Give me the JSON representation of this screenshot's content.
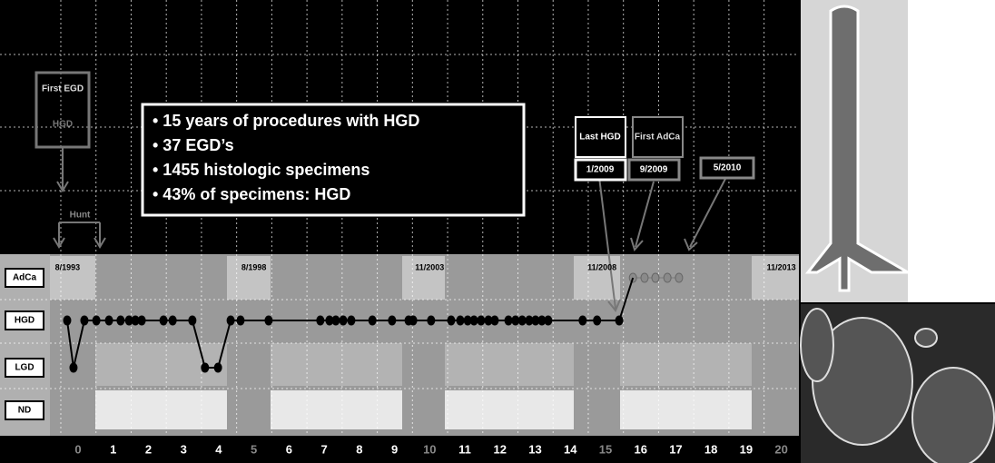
{
  "chart_data": {
    "type": "line",
    "y_categories": [
      "AdCa",
      "HGD",
      "LGD",
      "ND"
    ],
    "xlim": [
      -0.8,
      20.5
    ],
    "xticks": [
      0,
      1,
      2,
      3,
      4,
      5,
      6,
      7,
      8,
      9,
      10,
      11,
      12,
      13,
      14,
      15,
      16,
      17,
      18,
      19,
      20
    ],
    "x2ticks": [
      {
        "value": -0.3,
        "label": "8/1993"
      },
      {
        "value": 5,
        "label": "8/1998"
      },
      {
        "value": 10,
        "label": "11/2003"
      },
      {
        "value": 14.9,
        "label": "11/2008"
      },
      {
        "value": 20,
        "label": "11/2013"
      }
    ],
    "grid": true,
    "series": [
      {
        "color": "#000000",
        "x": [
          -0.31,
          -0.13,
          0.18,
          0.52,
          0.88,
          1.21,
          1.45,
          1.63,
          1.81,
          2.43,
          2.69,
          3.25,
          3.61,
          3.98,
          4.34,
          4.62,
          5.42,
          6.89,
          7.15,
          7.33,
          7.54,
          7.77,
          8.37,
          8.93,
          9.4,
          9.53,
          10.04,
          10.61,
          10.87,
          11.08,
          11.26,
          11.46,
          11.67,
          11.85,
          12.24,
          12.44,
          12.63,
          12.83,
          13.01,
          13.19,
          13.37,
          14.35,
          14.76,
          15.39
        ],
        "values": [
          "HGD",
          "LGD",
          "HGD",
          "HGD",
          "HGD",
          "HGD",
          "HGD",
          "HGD",
          "HGD",
          "HGD",
          "HGD",
          "HGD",
          "LGD",
          "LGD",
          "HGD",
          "HGD",
          "HGD",
          "HGD",
          "HGD",
          "HGD",
          "HGD",
          "HGD",
          "HGD",
          "HGD",
          "HGD",
          "HGD",
          "HGD",
          "HGD",
          "HGD",
          "HGD",
          "HGD",
          "HGD",
          "HGD",
          "HGD",
          "HGD",
          "HGD",
          "HGD",
          "HGD",
          "HGD",
          "HGD",
          "HGD",
          "HGD",
          "HGD",
          "HGD"
        ]
      },
      {
        "color": "#8a8a8a",
        "x": [
          15.78,
          16.11,
          16.42,
          16.76,
          17.09
        ],
        "values": [
          "AdCa",
          "AdCa",
          "AdCa",
          "AdCa",
          "AdCa"
        ]
      }
    ],
    "annotations": {
      "first_egd": "First EGD",
      "first_egd_grade": "HGD",
      "hunt": "Hunt",
      "bullets": [
        "• 15 years of procedures with HGD",
        "• 37 EGD’s",
        "• 1455 histologic specimens",
        "• 43% of specimens: HGD"
      ],
      "last_hgd": "Last HGD",
      "first_adca": "First AdCa",
      "last_hgd_date": "1/2009",
      "first_adca_date": "9/2009",
      "later_date": "5/2010"
    }
  }
}
